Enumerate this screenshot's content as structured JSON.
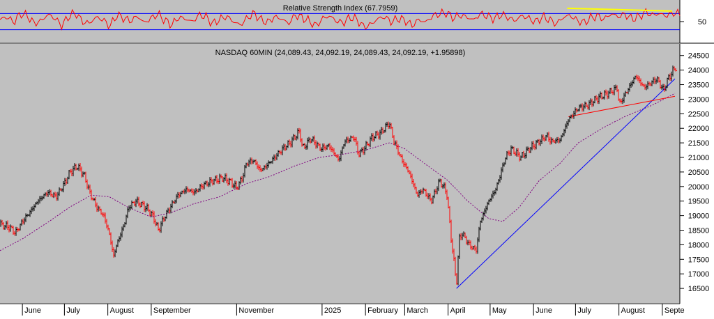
{
  "colors": {
    "panel_bg": "#c0c0c0",
    "price_up": "#000000",
    "price_down": "#ff0000",
    "ma_line": "#800080",
    "rsi_line": "#ff0000",
    "rsi_guides": "#0000ff",
    "trend_blue": "#0000ff",
    "trend_red": "#ff0000",
    "trend_yellow": "#ffff00"
  },
  "chart_data": [
    {
      "type": "line",
      "title": "Relative Strength Index (67.7959)",
      "ylim": [
        0,
        100
      ],
      "yticks": [
        50
      ],
      "guide_levels": [
        30,
        70
      ],
      "series": [
        {
          "values": [
            55,
            62,
            48,
            70,
            64,
            45,
            52,
            68,
            58,
            40,
            63,
            72,
            50,
            46,
            61,
            55,
            38,
            66,
            59,
            51,
            64,
            47,
            58,
            69,
            53,
            42,
            60,
            57,
            49,
            67,
            62,
            44,
            56,
            63,
            50,
            41,
            59,
            71,
            54,
            48,
            62,
            57,
            45,
            66,
            60,
            52,
            39,
            58,
            64,
            51,
            47,
            61,
            55,
            36,
            43,
            57,
            62,
            49,
            58,
            53,
            40,
            55,
            48,
            64,
            69,
            72,
            59,
            66,
            61,
            54,
            70,
            63,
            57,
            68,
            60,
            52,
            65,
            58,
            49,
            62,
            55,
            44,
            60,
            66,
            53,
            47,
            59,
            64,
            56,
            70,
            62,
            68,
            57,
            61,
            74,
            66,
            70,
            64,
            72,
            68
          ]
        }
      ],
      "annotations": [
        {
          "name": "rsi-yellow-trendline",
          "from": [
            "2025-06-25",
            83
          ],
          "to": [
            "2025-09-08",
            76
          ],
          "color": "#ffff00"
        }
      ]
    },
    {
      "type": "line",
      "title": "NASDAQ 60MIN (24,089.43, 24,092.19, 24,089.43, 24,092.19, +1.95898)",
      "ylim": [
        16000,
        24900
      ],
      "yticks": [
        16500,
        17000,
        17500,
        18000,
        18500,
        19000,
        19500,
        20000,
        20500,
        21000,
        21500,
        22000,
        22500,
        23000,
        23500,
        24000,
        24500
      ],
      "x_labels": [
        {
          "label": "June",
          "x": "2024-06-01"
        },
        {
          "label": "July",
          "x": "2024-07-01"
        },
        {
          "label": "August",
          "x": "2024-08-01"
        },
        {
          "label": "September",
          "x": "2024-09-01"
        },
        {
          "label": "November",
          "x": "2024-11-01"
        },
        {
          "label": "2025",
          "x": "2025-01-01"
        },
        {
          "label": "February",
          "x": "2025-02-01"
        },
        {
          "label": "March",
          "x": "2025-03-01"
        },
        {
          "label": "April",
          "x": "2025-04-01"
        },
        {
          "label": "May",
          "x": "2025-05-01"
        },
        {
          "label": "June",
          "x": "2025-06-01"
        },
        {
          "label": "July",
          "x": "2025-07-01"
        },
        {
          "label": "August",
          "x": "2025-08-01"
        },
        {
          "label": "Septe",
          "x": "2025-09-01"
        }
      ],
      "series": [
        {
          "kind": "price",
          "points": [
            [
              "2024-05-16",
              18700
            ],
            [
              "2024-05-23",
              18600
            ],
            [
              "2024-05-27",
              18400
            ],
            [
              "2024-06-01",
              18800
            ],
            [
              "2024-06-06",
              19100
            ],
            [
              "2024-06-12",
              19500
            ],
            [
              "2024-06-19",
              19800
            ],
            [
              "2024-06-25",
              19650
            ],
            [
              "2024-07-01",
              20100
            ],
            [
              "2024-07-05",
              20500
            ],
            [
              "2024-07-10",
              20700
            ],
            [
              "2024-07-15",
              20400
            ],
            [
              "2024-07-19",
              19800
            ],
            [
              "2024-07-24",
              19300
            ],
            [
              "2024-07-29",
              19000
            ],
            [
              "2024-08-02",
              18400
            ],
            [
              "2024-08-05",
              17600
            ],
            [
              "2024-08-08",
              18100
            ],
            [
              "2024-08-12",
              18600
            ],
            [
              "2024-08-16",
              19300
            ],
            [
              "2024-08-21",
              19500
            ],
            [
              "2024-08-26",
              19350
            ],
            [
              "2024-08-30",
              19200
            ],
            [
              "2024-09-03",
              18900
            ],
            [
              "2024-09-06",
              18500
            ],
            [
              "2024-09-11",
              19000
            ],
            [
              "2024-09-16",
              19400
            ],
            [
              "2024-09-20",
              19700
            ],
            [
              "2024-09-26",
              19900
            ],
            [
              "2024-10-02",
              19800
            ],
            [
              "2024-10-08",
              20050
            ],
            [
              "2024-10-15",
              20200
            ],
            [
              "2024-10-22",
              20300
            ],
            [
              "2024-10-28",
              20150
            ],
            [
              "2024-11-01",
              19950
            ],
            [
              "2024-11-05",
              20300
            ],
            [
              "2024-11-08",
              20800
            ],
            [
              "2024-11-13",
              20900
            ],
            [
              "2024-11-18",
              20550
            ],
            [
              "2024-11-22",
              20700
            ],
            [
              "2024-11-28",
              21000
            ],
            [
              "2024-12-04",
              21300
            ],
            [
              "2024-12-09",
              21500
            ],
            [
              "2024-12-16",
              21900
            ],
            [
              "2024-12-18",
              21300
            ],
            [
              "2024-12-24",
              21650
            ],
            [
              "2024-12-31",
              21300
            ],
            [
              "2025-01-06",
              21400
            ],
            [
              "2025-01-13",
              20900
            ],
            [
              "2025-01-17",
              21550
            ],
            [
              "2025-01-24",
              21700
            ],
            [
              "2025-01-27",
              21100
            ],
            [
              "2025-01-31",
              21300
            ],
            [
              "2025-02-06",
              21700
            ],
            [
              "2025-02-12",
              21850
            ],
            [
              "2025-02-18",
              22200
            ],
            [
              "2025-02-21",
              21600
            ],
            [
              "2025-02-27",
              20900
            ],
            [
              "2025-03-04",
              20500
            ],
            [
              "2025-03-10",
              19700
            ],
            [
              "2025-03-14",
              19900
            ],
            [
              "2025-03-20",
              19500
            ],
            [
              "2025-03-26",
              20200
            ],
            [
              "2025-03-31",
              19800
            ],
            [
              "2025-04-03",
              18300
            ],
            [
              "2025-04-07",
              16650
            ],
            [
              "2025-04-09",
              18200
            ],
            [
              "2025-04-11",
              18400
            ],
            [
              "2025-04-16",
              18000
            ],
            [
              "2025-04-21",
              17800
            ],
            [
              "2025-04-24",
              18800
            ],
            [
              "2025-04-30",
              19500
            ],
            [
              "2025-05-05",
              19900
            ],
            [
              "2025-05-12",
              21000
            ],
            [
              "2025-05-16",
              21300
            ],
            [
              "2025-05-23",
              21000
            ],
            [
              "2025-05-29",
              21300
            ],
            [
              "2025-06-05",
              21550
            ],
            [
              "2025-06-11",
              21750
            ],
            [
              "2025-06-13",
              21550
            ],
            [
              "2025-06-20",
              21600
            ],
            [
              "2025-06-26",
              22300
            ],
            [
              "2025-07-03",
              22700
            ],
            [
              "2025-07-10",
              22800
            ],
            [
              "2025-07-17",
              23050
            ],
            [
              "2025-07-24",
              23200
            ],
            [
              "2025-07-31",
              23400
            ],
            [
              "2025-08-01",
              22800
            ],
            [
              "2025-08-07",
              23300
            ],
            [
              "2025-08-13",
              23800
            ],
            [
              "2025-08-19",
              23400
            ],
            [
              "2025-08-22",
              23500
            ],
            [
              "2025-08-28",
              23700
            ],
            [
              "2025-09-02",
              23300
            ],
            [
              "2025-09-05",
              23700
            ],
            [
              "2025-09-09",
              24000
            ],
            [
              "2025-09-10",
              24092
            ]
          ]
        },
        {
          "kind": "moving-average",
          "points": [
            [
              "2024-05-16",
              17800
            ],
            [
              "2024-06-01",
              18200
            ],
            [
              "2024-06-20",
              18800
            ],
            [
              "2024-07-05",
              19300
            ],
            [
              "2024-07-20",
              19700
            ],
            [
              "2024-08-02",
              19650
            ],
            [
              "2024-08-15",
              19300
            ],
            [
              "2024-09-01",
              18950
            ],
            [
              "2024-09-15",
              19100
            ],
            [
              "2024-10-01",
              19400
            ],
            [
              "2024-10-20",
              19650
            ],
            [
              "2024-11-08",
              20100
            ],
            [
              "2024-11-25",
              20350
            ],
            [
              "2024-12-12",
              20700
            ],
            [
              "2024-12-30",
              21000
            ],
            [
              "2025-01-15",
              21100
            ],
            [
              "2025-02-01",
              21250
            ],
            [
              "2025-02-18",
              21500
            ],
            [
              "2025-03-01",
              21300
            ],
            [
              "2025-03-15",
              20800
            ],
            [
              "2025-04-01",
              20200
            ],
            [
              "2025-04-15",
              19500
            ],
            [
              "2025-04-30",
              18900
            ],
            [
              "2025-05-10",
              18800
            ],
            [
              "2025-05-22",
              19300
            ],
            [
              "2025-06-05",
              20200
            ],
            [
              "2025-06-20",
              20800
            ],
            [
              "2025-07-03",
              21500
            ],
            [
              "2025-07-20",
              22000
            ],
            [
              "2025-08-05",
              22400
            ],
            [
              "2025-08-25",
              22800
            ],
            [
              "2025-09-10",
              23200
            ]
          ]
        }
      ],
      "annotations": [
        {
          "name": "blue-support-trendline",
          "from": [
            "2025-04-07",
            16500
          ],
          "to": [
            "2025-09-10",
            23700
          ],
          "color": "#0000ff"
        },
        {
          "name": "red-trendline",
          "from": [
            "2025-06-26",
            22400
          ],
          "to": [
            "2025-09-10",
            23100
          ],
          "color": "#ff0000"
        }
      ]
    }
  ]
}
